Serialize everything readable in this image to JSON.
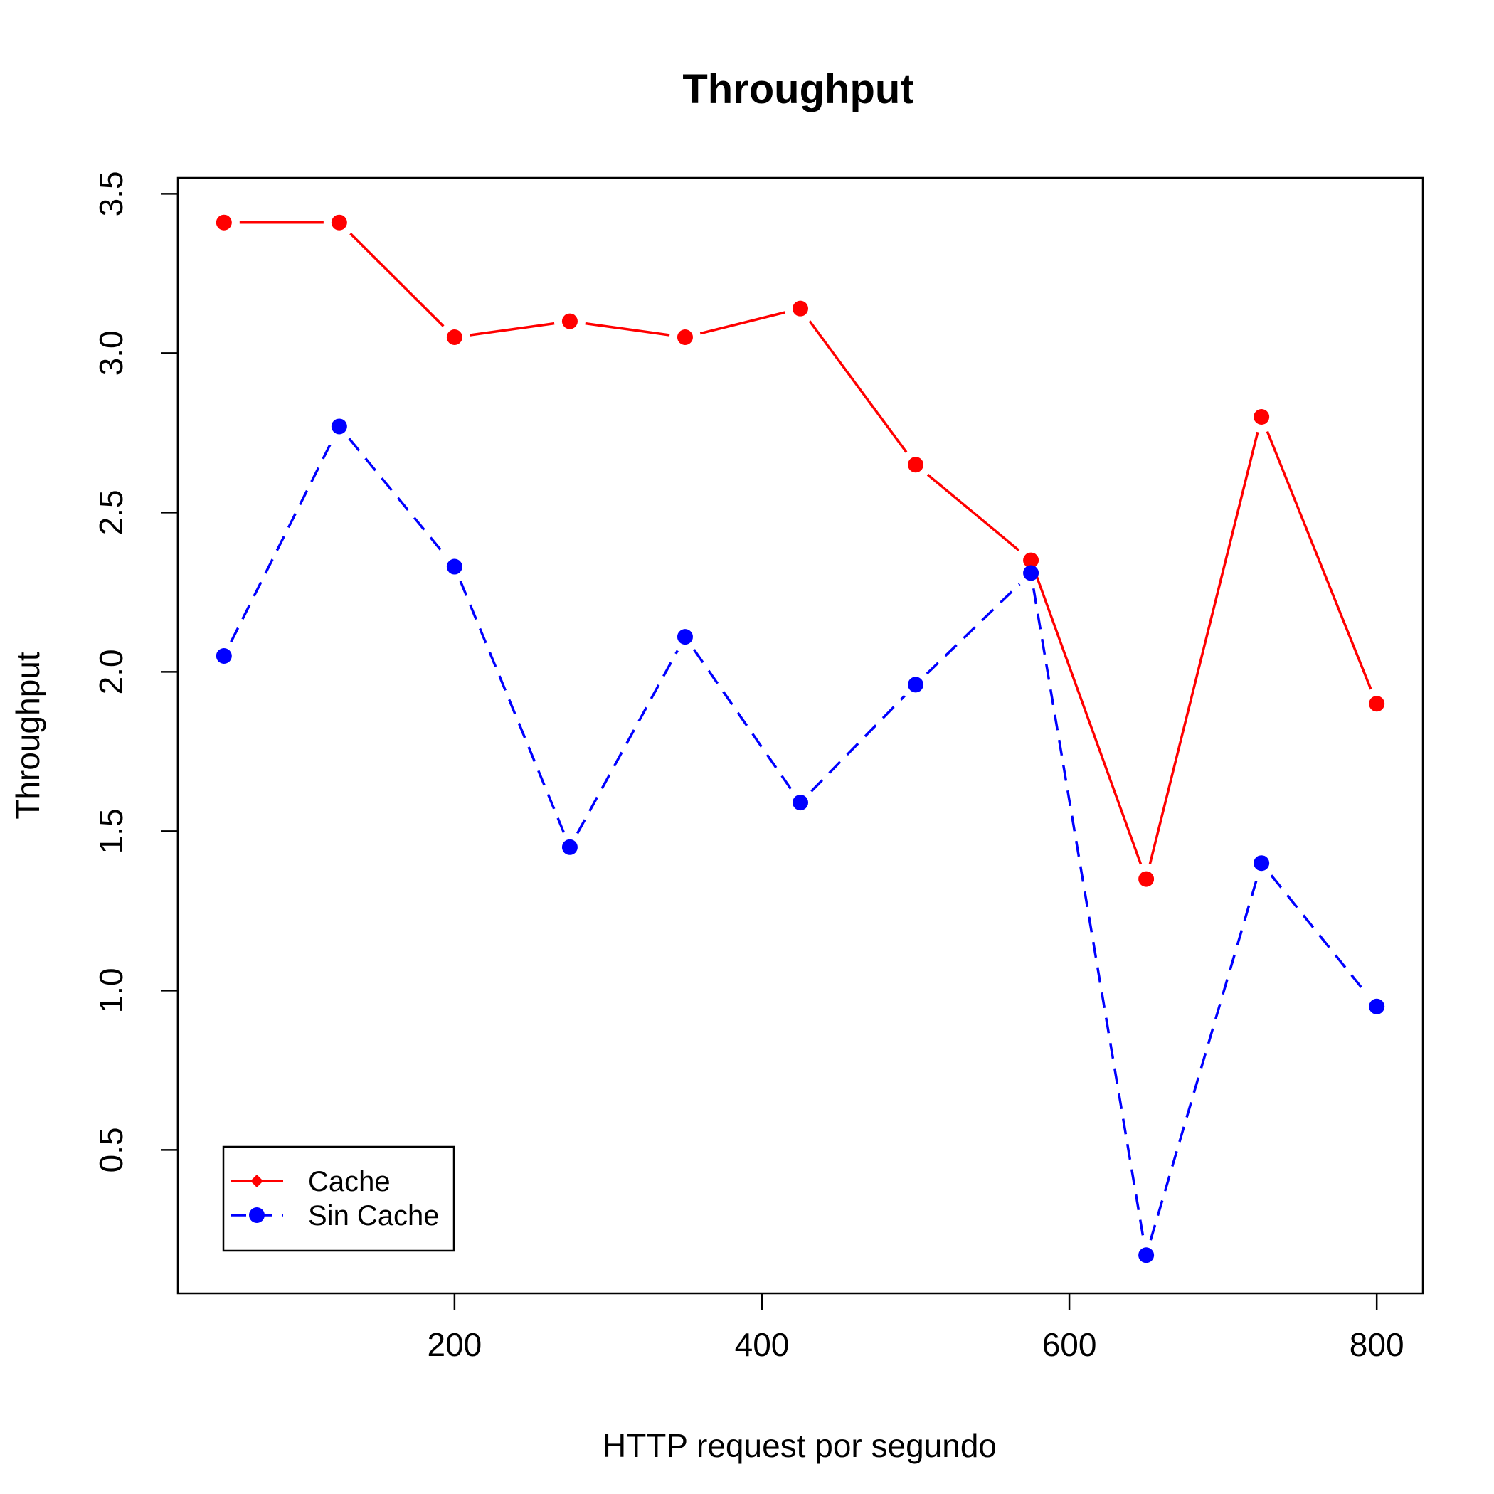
{
  "chart_data": {
    "type": "line",
    "title": "Throughput",
    "xlabel": "HTTP request por segundo",
    "ylabel": "Throughput",
    "x": [
      50,
      125,
      200,
      275,
      350,
      425,
      500,
      575,
      650,
      725,
      800
    ],
    "xlim": [
      20,
      830
    ],
    "ylim": [
      0.05,
      3.55
    ],
    "xticks": [
      200,
      400,
      600,
      800
    ],
    "yticks": [
      0.5,
      1.0,
      1.5,
      2.0,
      2.5,
      3.0,
      3.5
    ],
    "xtick_labels": [
      "200",
      "400",
      "600",
      "800"
    ],
    "ytick_labels": [
      "0.5",
      "1.0",
      "1.5",
      "2.0",
      "2.5",
      "3.0",
      "3.5"
    ],
    "grid": false,
    "legend_position": "bottom-left",
    "series": [
      {
        "name": "Cache",
        "color": "#ff0000",
        "line_style": "solid",
        "legend_marker": "diamond",
        "values": [
          3.41,
          3.41,
          3.05,
          3.1,
          3.05,
          3.14,
          2.65,
          2.35,
          1.35,
          2.8,
          1.9
        ]
      },
      {
        "name": "Sin Cache",
        "color": "#0000ff",
        "line_style": "dashed",
        "legend_marker": "circle",
        "values": [
          2.05,
          2.77,
          2.33,
          1.45,
          2.11,
          1.59,
          1.96,
          2.31,
          0.17,
          1.4,
          0.95
        ]
      }
    ]
  }
}
